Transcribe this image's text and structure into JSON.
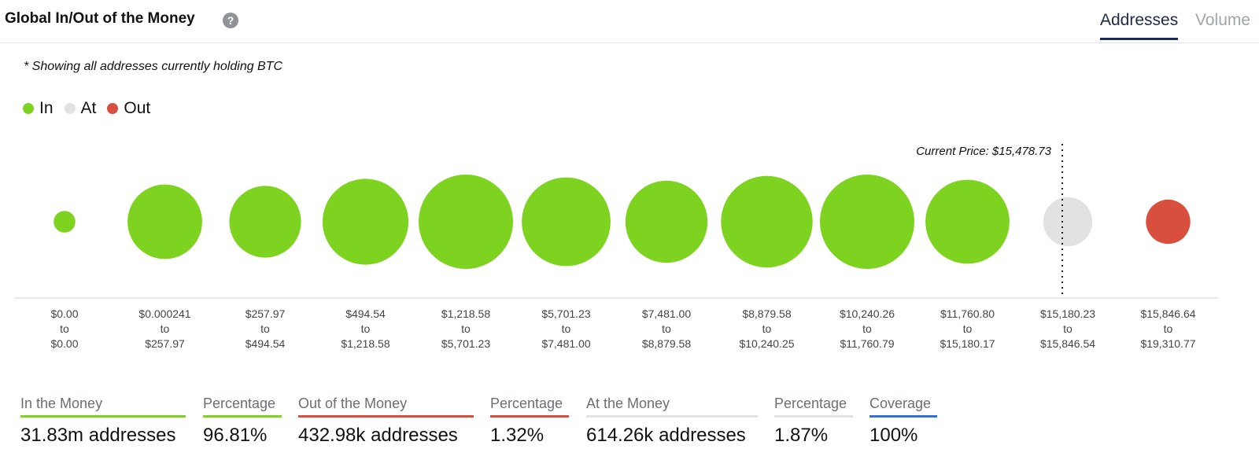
{
  "header": {
    "title": "Global In/Out of the Money",
    "help_icon": "question-circle-icon",
    "tabs": [
      {
        "label": "Addresses",
        "active": true
      },
      {
        "label": "Volume",
        "active": false
      }
    ]
  },
  "note": "* Showing all addresses currently holding BTC",
  "legend": [
    {
      "label": "In",
      "color": "#7ed321"
    },
    {
      "label": "At",
      "color": "#e2e2e2"
    },
    {
      "label": "Out",
      "color": "#d94f3d"
    }
  ],
  "chart_data": {
    "type": "scatter",
    "current_price_label": "Current Price: $15,478.73",
    "current_price_bucket": 10,
    "buckets": [
      {
        "from": "$0.00",
        "to": "$0.00",
        "status": "in",
        "relative_size": 0.23
      },
      {
        "from": "$0.000241",
        "to": "$257.97",
        "status": "in",
        "relative_size": 0.79
      },
      {
        "from": "$257.97",
        "to": "$494.54",
        "status": "in",
        "relative_size": 0.76
      },
      {
        "from": "$494.54",
        "to": "$1,218.58",
        "status": "in",
        "relative_size": 0.91
      },
      {
        "from": "$1,218.58",
        "to": "$5,701.23",
        "status": "in",
        "relative_size": 1.0
      },
      {
        "from": "$5,701.23",
        "to": "$7,481.00",
        "status": "in",
        "relative_size": 0.94
      },
      {
        "from": "$7,481.00",
        "to": "$8,879.58",
        "status": "in",
        "relative_size": 0.87
      },
      {
        "from": "$8,879.58",
        "to": "$10,240.25",
        "status": "in",
        "relative_size": 0.97
      },
      {
        "from": "$10,240.26",
        "to": "$11,760.79",
        "status": "in",
        "relative_size": 1.0
      },
      {
        "from": "$11,760.80",
        "to": "$15,180.17",
        "status": "in",
        "relative_size": 0.89
      },
      {
        "from": "$15,180.23",
        "to": "$15,846.54",
        "status": "at",
        "relative_size": 0.52
      },
      {
        "from": "$15,846.64",
        "to": "$19,310.77",
        "status": "out",
        "relative_size": 0.47
      }
    ],
    "to_word": "to"
  },
  "summary": [
    {
      "label": "In the Money",
      "value": "31.83m addresses",
      "color": "#7ed321"
    },
    {
      "label": "Percentage",
      "value": "96.81%",
      "color": "#7ed321"
    },
    {
      "label": "Out of the Money",
      "value": "432.98k addresses",
      "color": "#d94f3d"
    },
    {
      "label": "Percentage",
      "value": "1.32%",
      "color": "#d94f3d"
    },
    {
      "label": "At the Money",
      "value": "614.26k addresses",
      "color": "#e2e2e2"
    },
    {
      "label": "Percentage",
      "value": "1.87%",
      "color": "#e2e2e2"
    },
    {
      "label": "Coverage",
      "value": "100%",
      "color": "#2f6fde"
    }
  ]
}
